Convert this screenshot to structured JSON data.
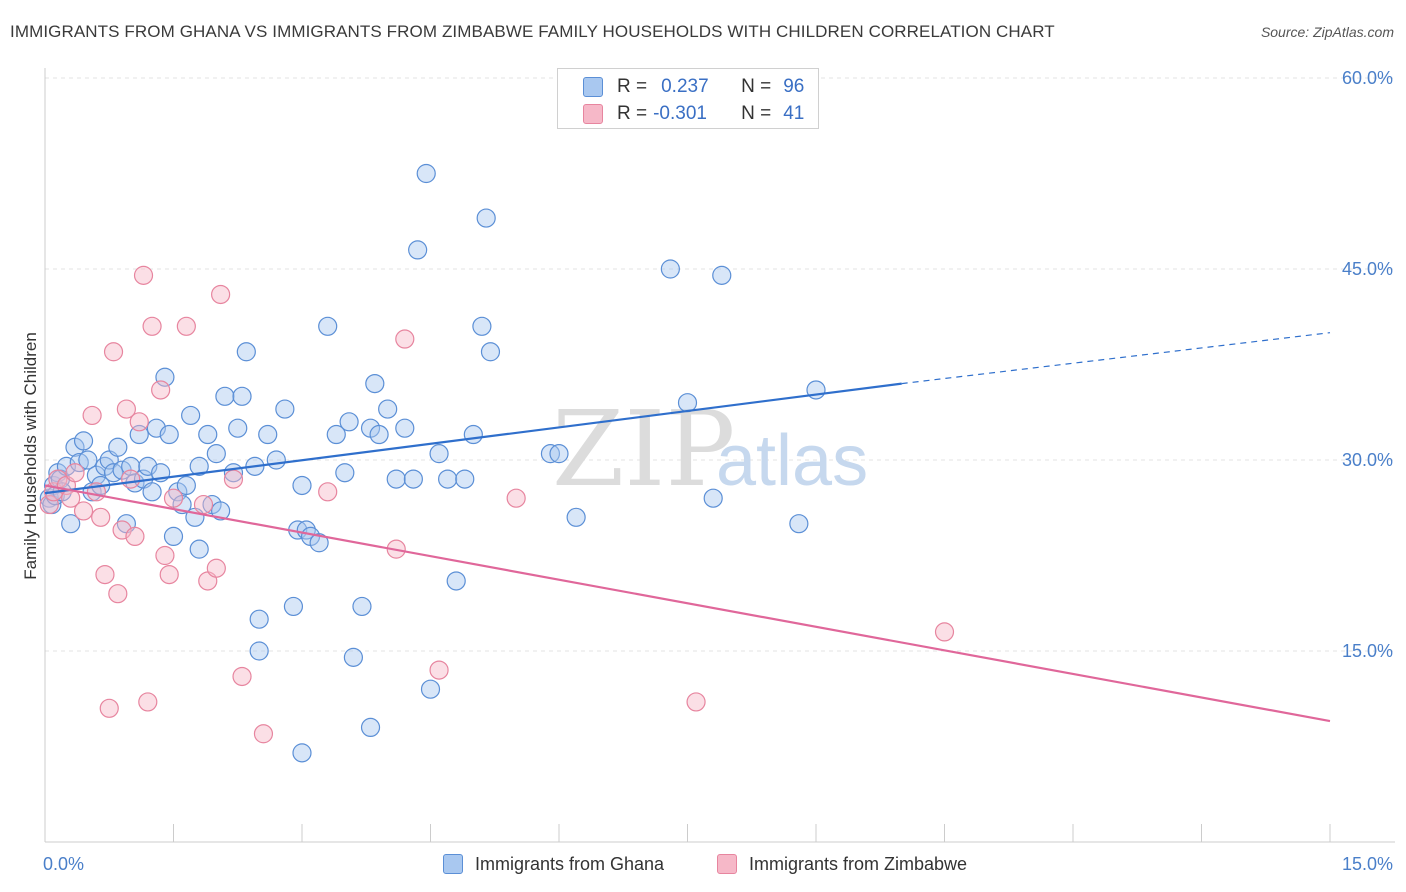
{
  "title": "IMMIGRANTS FROM GHANA VS IMMIGRANTS FROM ZIMBABWE FAMILY HOUSEHOLDS WITH CHILDREN CORRELATION CHART",
  "source": "Source: ZipAtlas.com",
  "watermark": {
    "zip": "ZIP",
    "atlas": "atlas"
  },
  "legend": {
    "rows": [
      {
        "r_label": "R =",
        "r_value": "0.237",
        "n_label": "N =",
        "n_value": "96",
        "color": "#a9c8f0"
      },
      {
        "r_label": "R =",
        "r_value": "-0.301",
        "n_label": "N =",
        "n_value": "41",
        "color": "#f6b8c8"
      }
    ]
  },
  "bottom_legend": {
    "ghana": "Immigrants from Ghana",
    "zimbabwe": "Immigrants from Zimbabwe"
  },
  "colors": {
    "ghana_fill": "#a9c8f0",
    "ghana_stroke": "#5b8fd6",
    "ghana_line": "#2f6fcc",
    "zimbabwe_fill": "#f6b8c8",
    "zimbabwe_stroke": "#e7859f",
    "zimbabwe_line": "#e0679a",
    "axis_text": "#4a7fc9",
    "grid": "#e3e3e3"
  },
  "chart_data": {
    "type": "scatter",
    "title": "IMMIGRANTS FROM GHANA VS IMMIGRANTS FROM ZIMBABWE FAMILY HOUSEHOLDS WITH CHILDREN CORRELATION CHART",
    "xlabel": "",
    "ylabel": "Family Households with Children",
    "xlim": [
      0,
      15
    ],
    "ylim": [
      0,
      60
    ],
    "x_tick_labels": [
      "0.0%",
      "15.0%"
    ],
    "y_ticks": [
      15,
      30,
      45,
      60
    ],
    "y_tick_labels": [
      "15.0%",
      "30.0%",
      "45.0%",
      "60.0%"
    ],
    "grid": true,
    "legend_position": "top-center",
    "series": [
      {
        "name": "Immigrants from Ghana",
        "trend": {
          "x": [
            0,
            10.0
          ],
          "y": [
            27.4,
            36.0
          ],
          "dashed_to": [
            15,
            40.0
          ]
        },
        "points": [
          [
            0.05,
            27.0
          ],
          [
            0.08,
            26.5
          ],
          [
            0.1,
            28.0
          ],
          [
            0.12,
            27.2
          ],
          [
            0.15,
            29.0
          ],
          [
            0.18,
            28.5
          ],
          [
            0.2,
            27.5
          ],
          [
            0.25,
            29.5
          ],
          [
            0.3,
            25.0
          ],
          [
            0.35,
            31.0
          ],
          [
            0.4,
            29.8
          ],
          [
            0.45,
            31.5
          ],
          [
            0.5,
            30.0
          ],
          [
            0.55,
            27.5
          ],
          [
            0.6,
            28.8
          ],
          [
            0.65,
            28.0
          ],
          [
            0.7,
            29.5
          ],
          [
            0.75,
            30.0
          ],
          [
            0.8,
            29.0
          ],
          [
            0.85,
            31.0
          ],
          [
            0.9,
            29.2
          ],
          [
            0.95,
            25.0
          ],
          [
            1.0,
            29.5
          ],
          [
            1.05,
            28.2
          ],
          [
            1.1,
            32.0
          ],
          [
            1.15,
            28.5
          ],
          [
            1.2,
            29.5
          ],
          [
            1.25,
            27.5
          ],
          [
            1.3,
            32.5
          ],
          [
            1.35,
            29.0
          ],
          [
            1.4,
            36.5
          ],
          [
            1.45,
            32.0
          ],
          [
            1.5,
            24.0
          ],
          [
            1.55,
            27.5
          ],
          [
            1.6,
            26.5
          ],
          [
            1.65,
            28.0
          ],
          [
            1.7,
            33.5
          ],
          [
            1.75,
            25.5
          ],
          [
            1.8,
            29.5
          ],
          [
            1.9,
            32.0
          ],
          [
            1.95,
            26.5
          ],
          [
            2.0,
            30.5
          ],
          [
            2.05,
            26.0
          ],
          [
            2.1,
            35.0
          ],
          [
            2.2,
            29.0
          ],
          [
            2.25,
            32.5
          ],
          [
            2.3,
            35.0
          ],
          [
            2.35,
            38.5
          ],
          [
            2.45,
            29.5
          ],
          [
            2.5,
            17.5
          ],
          [
            2.6,
            32.0
          ],
          [
            2.7,
            30.0
          ],
          [
            2.8,
            34.0
          ],
          [
            2.9,
            18.5
          ],
          [
            2.95,
            24.5
          ],
          [
            3.0,
            28.0
          ],
          [
            3.05,
            24.5
          ],
          [
            3.1,
            24.0
          ],
          [
            3.2,
            23.5
          ],
          [
            3.3,
            40.5
          ],
          [
            3.4,
            32.0
          ],
          [
            3.5,
            29.0
          ],
          [
            3.55,
            33.0
          ],
          [
            3.6,
            14.5
          ],
          [
            3.7,
            18.5
          ],
          [
            3.8,
            32.5
          ],
          [
            3.85,
            36.0
          ],
          [
            3.9,
            32.0
          ],
          [
            4.0,
            34.0
          ],
          [
            4.1,
            28.5
          ],
          [
            4.2,
            32.5
          ],
          [
            4.3,
            28.5
          ],
          [
            4.35,
            46.5
          ],
          [
            4.45,
            52.5
          ],
          [
            4.6,
            30.5
          ],
          [
            4.7,
            28.5
          ],
          [
            4.8,
            20.5
          ],
          [
            4.9,
            28.5
          ],
          [
            5.0,
            32.0
          ],
          [
            5.1,
            40.5
          ],
          [
            5.15,
            49.0
          ],
          [
            5.2,
            38.5
          ],
          [
            5.9,
            30.5
          ],
          [
            6.2,
            25.5
          ],
          [
            7.3,
            45.0
          ],
          [
            7.5,
            34.5
          ],
          [
            7.8,
            27.0
          ],
          [
            7.9,
            44.5
          ],
          [
            8.8,
            25.0
          ],
          [
            9.0,
            35.5
          ],
          [
            3.8,
            9.0
          ],
          [
            3.0,
            7.0
          ],
          [
            2.5,
            15.0
          ],
          [
            4.5,
            12.0
          ],
          [
            6.0,
            30.5
          ],
          [
            1.8,
            23.0
          ]
        ]
      },
      {
        "name": "Immigrants from Zimbabwe",
        "trend": {
          "x": [
            0,
            15
          ],
          "y": [
            28.0,
            9.5
          ]
        },
        "points": [
          [
            0.05,
            26.5
          ],
          [
            0.1,
            27.5
          ],
          [
            0.15,
            28.5
          ],
          [
            0.25,
            28.0
          ],
          [
            0.3,
            27.0
          ],
          [
            0.45,
            26.0
          ],
          [
            0.55,
            33.5
          ],
          [
            0.6,
            27.5
          ],
          [
            0.7,
            21.0
          ],
          [
            0.75,
            10.5
          ],
          [
            0.8,
            38.5
          ],
          [
            0.85,
            19.5
          ],
          [
            0.9,
            24.5
          ],
          [
            0.95,
            34.0
          ],
          [
            1.0,
            28.5
          ],
          [
            1.05,
            24.0
          ],
          [
            1.1,
            33.0
          ],
          [
            1.15,
            44.5
          ],
          [
            1.2,
            11.0
          ],
          [
            1.25,
            40.5
          ],
          [
            1.35,
            35.5
          ],
          [
            1.4,
            22.5
          ],
          [
            1.45,
            21.0
          ],
          [
            1.5,
            27.0
          ],
          [
            1.65,
            40.5
          ],
          [
            1.9,
            20.5
          ],
          [
            2.0,
            21.5
          ],
          [
            2.05,
            43.0
          ],
          [
            2.2,
            28.5
          ],
          [
            2.3,
            13.0
          ],
          [
            2.55,
            8.5
          ],
          [
            3.3,
            27.5
          ],
          [
            4.1,
            23.0
          ],
          [
            4.2,
            39.5
          ],
          [
            4.6,
            13.5
          ],
          [
            5.5,
            27.0
          ],
          [
            7.6,
            11.0
          ],
          [
            10.5,
            16.5
          ],
          [
            0.35,
            29.0
          ],
          [
            1.85,
            26.5
          ],
          [
            0.65,
            25.5
          ]
        ]
      }
    ]
  }
}
